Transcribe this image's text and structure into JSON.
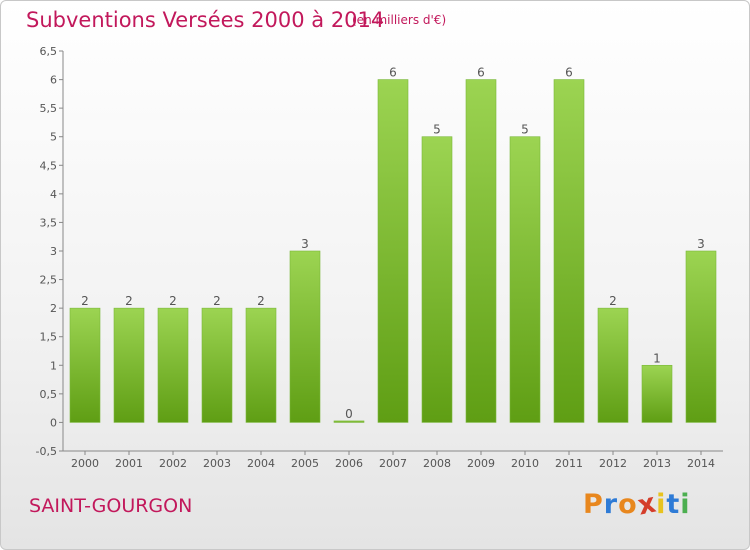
{
  "header": {
    "title": "Subventions Versées 2000 à 2014",
    "unit": "(en milliers d'€)"
  },
  "footer": {
    "commune": "SAINT-GOURGON",
    "logo_letters": [
      "P",
      "r",
      "o",
      "x",
      "i",
      "t",
      "i"
    ]
  },
  "colors": {
    "title": "#c2185b",
    "bar_top": "#9cd452",
    "bar_bottom": "#5f9e14",
    "logo": [
      "#e8871e",
      "#2e7bd6",
      "#e8871e",
      "#d43d2a",
      "#e8c31e",
      "#2e7bd6",
      "#4caf50"
    ]
  },
  "chart_data": {
    "type": "bar",
    "title": "Subventions Versées 2000 à 2014",
    "subtitle": "(en milliers d'€)",
    "categories": [
      "2000",
      "2001",
      "2002",
      "2003",
      "2004",
      "2005",
      "2006",
      "2007",
      "2008",
      "2009",
      "2010",
      "2011",
      "2012",
      "2013",
      "2014"
    ],
    "values": [
      2,
      2,
      2,
      2,
      2,
      3,
      0,
      6,
      5,
      6,
      5,
      6,
      2,
      1,
      3
    ],
    "ylim": [
      -0.5,
      6.5
    ],
    "yticks": [
      "-0,5",
      "0",
      "0,5",
      "1",
      "1,5",
      "2",
      "2,5",
      "3",
      "3,5",
      "4",
      "4,5",
      "5",
      "5,5",
      "6",
      "6,5"
    ],
    "grid": false,
    "legend": "none"
  }
}
